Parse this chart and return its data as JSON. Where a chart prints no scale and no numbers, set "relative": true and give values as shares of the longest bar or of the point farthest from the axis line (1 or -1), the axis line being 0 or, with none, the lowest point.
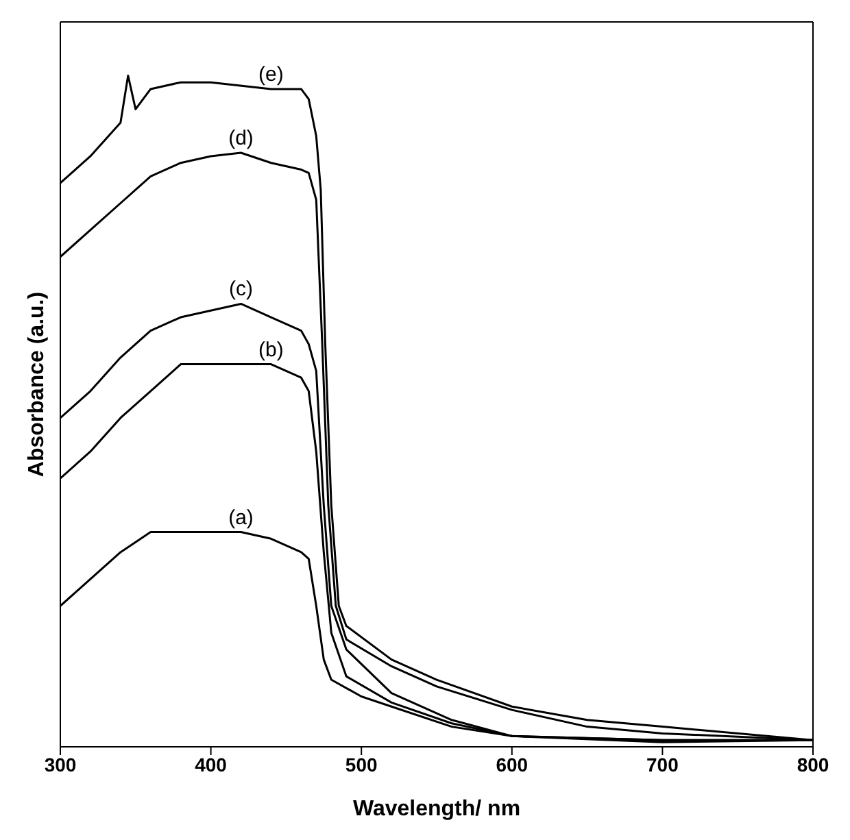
{
  "chart_data": {
    "type": "line",
    "xlabel": "Wavelength/ nm",
    "ylabel": "Absorbance (a.u.)",
    "relative": true,
    "xlim": [
      300,
      800
    ],
    "xticks": [
      300,
      400,
      500,
      600,
      700,
      800
    ],
    "grid": false,
    "legend": false,
    "marker": "none",
    "line_style": "solid",
    "series": [
      {
        "name": "(a)",
        "color": "#000000",
        "x": [
          300,
          320,
          340,
          360,
          380,
          400,
          420,
          440,
          460,
          465,
          470,
          475,
          480,
          500,
          520,
          560,
          600,
          700,
          800
        ],
        "values": [
          0.21,
          0.25,
          0.29,
          0.32,
          0.32,
          0.32,
          0.32,
          0.31,
          0.29,
          0.28,
          0.21,
          0.13,
          0.1,
          0.075,
          0.06,
          0.03,
          0.016,
          0.01,
          0.01
        ]
      },
      {
        "name": "(b)",
        "color": "#000000",
        "x": [
          300,
          320,
          340,
          360,
          380,
          400,
          440,
          460,
          465,
          470,
          475,
          480,
          490,
          520,
          560,
          600,
          700,
          800
        ],
        "values": [
          0.4,
          0.44,
          0.49,
          0.53,
          0.57,
          0.57,
          0.57,
          0.55,
          0.53,
          0.44,
          0.29,
          0.17,
          0.105,
          0.066,
          0.035,
          0.016,
          0.01,
          0.01
        ]
      },
      {
        "name": "(c)",
        "color": "#000000",
        "x": [
          300,
          320,
          340,
          360,
          380,
          400,
          420,
          440,
          460,
          465,
          470,
          475,
          480,
          490,
          520,
          560,
          600,
          700,
          800
        ],
        "values": [
          0.49,
          0.53,
          0.58,
          0.62,
          0.64,
          0.65,
          0.66,
          0.64,
          0.62,
          0.6,
          0.56,
          0.36,
          0.21,
          0.145,
          0.08,
          0.04,
          0.016,
          0.007,
          0.01
        ]
      },
      {
        "name": "(d)",
        "color": "#000000",
        "x": [
          300,
          320,
          340,
          360,
          380,
          400,
          420,
          440,
          460,
          465,
          470,
          474,
          478,
          483,
          490,
          520,
          550,
          600,
          650,
          700,
          800
        ],
        "values": [
          0.73,
          0.77,
          0.81,
          0.85,
          0.87,
          0.88,
          0.885,
          0.87,
          0.86,
          0.855,
          0.815,
          0.6,
          0.36,
          0.21,
          0.16,
          0.12,
          0.09,
          0.055,
          0.03,
          0.02,
          0.01
        ]
      },
      {
        "name": "(e)",
        "color": "#000000",
        "x": [
          300,
          320,
          340,
          345,
          350,
          360,
          380,
          400,
          440,
          460,
          465,
          470,
          473,
          476,
          480,
          485,
          490,
          520,
          550,
          600,
          650,
          700,
          800
        ],
        "values": [
          0.84,
          0.88,
          0.93,
          1.0,
          0.95,
          0.98,
          0.99,
          0.99,
          0.98,
          0.98,
          0.965,
          0.91,
          0.83,
          0.6,
          0.36,
          0.21,
          0.18,
          0.13,
          0.1,
          0.06,
          0.04,
          0.03,
          0.01
        ]
      }
    ]
  }
}
